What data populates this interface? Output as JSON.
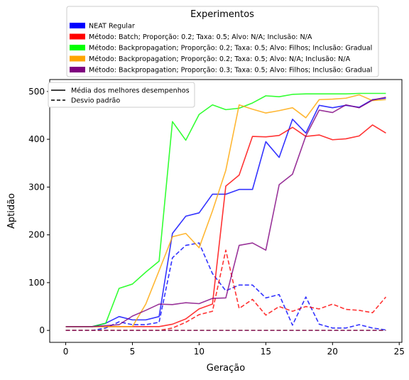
{
  "chart_data": {
    "type": "line",
    "title": "",
    "xlabel": "Geração",
    "ylabel": "Aptidão",
    "xlim": [
      -1.2,
      25.2
    ],
    "ylim": [
      -25,
      525
    ],
    "x_ticks": [
      0,
      5,
      10,
      15,
      20,
      25
    ],
    "y_ticks": [
      0,
      100,
      200,
      300,
      400,
      500
    ],
    "grid": false,
    "legend_experiments": {
      "title": "Experimentos",
      "placement": "above-plot",
      "entries": [
        {
          "label": "NEAT Regular",
          "color": "#0000ff"
        },
        {
          "label": "Método: Batch; Proporção: 0.2; Taxa: 0.5; Alvo: N/A; Inclusão: N/A",
          "color": "#ff0000"
        },
        {
          "label": "Método: Backpropagation; Proporção: 0.2; Taxa: 0.5; Alvo: Filhos; Inclusão: Gradual",
          "color": "#00ff00"
        },
        {
          "label": "Método: Backpropagation; Proporção: 0.2; Taxa: 0.5; Alvo: N/A; Inclusão: N/A",
          "color": "#ffa500"
        },
        {
          "label": "Método: Backpropagation; Proporção: 0.3; Taxa: 0.5; Alvo: Filhos; Inclusão: Gradual",
          "color": "#800080"
        }
      ]
    },
    "legend_styles": {
      "placement": "upper-left",
      "entries": [
        {
          "label": "Média dos melhores desempenhos",
          "dash": "solid"
        },
        {
          "label": "Desvio padrão",
          "dash": "dashed"
        }
      ]
    },
    "x": [
      0,
      1,
      2,
      3,
      4,
      5,
      6,
      7,
      8,
      9,
      10,
      11,
      12,
      13,
      14,
      15,
      16,
      17,
      18,
      19,
      20,
      21,
      22,
      23,
      24
    ],
    "series": [
      {
        "name": "NEAT Regular",
        "kind": "mean",
        "color": "#0000ff",
        "values": [
          8,
          8,
          8,
          15,
          29,
          22,
          22,
          29,
          203,
          239,
          246,
          285,
          285,
          295,
          295,
          395,
          362,
          442,
          413,
          471,
          466,
          471,
          467,
          483,
          486
        ]
      },
      {
        "name": "NEAT Regular",
        "kind": "std",
        "color": "#0000ff",
        "values": [
          0,
          0,
          0,
          5,
          18,
          12,
          12,
          17,
          152,
          178,
          183,
          119,
          83,
          95,
          95,
          68,
          75,
          11,
          70,
          13,
          5,
          5,
          12,
          5,
          1
        ]
      },
      {
        "name": "Método: Batch; Proporção: 0.2; Taxa: 0.5; Alvo: N/A; Inclusão: N/A",
        "kind": "mean",
        "color": "#ff0000",
        "values": [
          8,
          8,
          8,
          8,
          8,
          8,
          8,
          8,
          13,
          24,
          45,
          55,
          302,
          325,
          406,
          405,
          408,
          425,
          406,
          409,
          399,
          401,
          407,
          430,
          413
        ]
      },
      {
        "name": "Método: Batch; Proporção: 0.2; Taxa: 0.5; Alvo: N/A; Inclusão: N/A",
        "kind": "std",
        "color": "#ff0000",
        "values": [
          0,
          0,
          0,
          0,
          0,
          0,
          0,
          0,
          5,
          17,
          33,
          40,
          168,
          46,
          65,
          32,
          50,
          40,
          50,
          45,
          55,
          44,
          42,
          37,
          70
        ]
      },
      {
        "name": "Método: Backpropagation; Proporção: 0.2; Taxa: 0.5; Alvo: Filhos; Inclusão: Gradual",
        "kind": "mean",
        "color": "#00ff00",
        "values": [
          8,
          8,
          8,
          15,
          88,
          97,
          122,
          145,
          437,
          398,
          452,
          472,
          462,
          465,
          476,
          491,
          489,
          494,
          495,
          495,
          495,
          495,
          496,
          496,
          496
        ]
      },
      {
        "name": "Método: Backpropagation; Proporção: 0.2; Taxa: 0.5; Alvo: Filhos; Inclusão: Gradual",
        "kind": "std",
        "color": "#00ff00",
        "values": [
          0,
          0,
          0,
          0,
          0,
          0,
          0,
          0,
          0,
          0,
          0,
          0,
          0,
          0,
          0,
          0,
          0,
          0,
          0,
          0,
          0,
          0,
          0,
          0,
          0
        ]
      },
      {
        "name": "Método: Backpropagation; Proporção: 0.2; Taxa: 0.5; Alvo: N/A; Inclusão: N/A",
        "kind": "mean",
        "color": "#ffa500",
        "values": [
          8,
          8,
          8,
          8,
          8,
          8,
          55,
          125,
          196,
          203,
          173,
          250,
          335,
          472,
          463,
          455,
          460,
          466,
          445,
          483,
          484,
          486,
          493,
          481,
          483
        ]
      },
      {
        "name": "Método: Backpropagation; Proporção: 0.2; Taxa: 0.5; Alvo: N/A; Inclusão: N/A",
        "kind": "std",
        "color": "#ffa500",
        "values": [
          0,
          0,
          0,
          0,
          0,
          0,
          0,
          0,
          0,
          0,
          0,
          0,
          0,
          0,
          0,
          0,
          0,
          0,
          0,
          0,
          0,
          0,
          0,
          0,
          0
        ]
      },
      {
        "name": "Método: Backpropagation; Proporção: 0.3; Taxa: 0.5; Alvo: Filhos; Inclusão: Gradual",
        "kind": "mean",
        "color": "#800080",
        "values": [
          8,
          8,
          8,
          10,
          12,
          30,
          42,
          55,
          54,
          58,
          56,
          67,
          68,
          178,
          183,
          168,
          305,
          327,
          407,
          461,
          456,
          472,
          466,
          482,
          488
        ]
      },
      {
        "name": "Método: Backpropagation; Proporção: 0.3; Taxa: 0.5; Alvo: Filhos; Inclusão: Gradual",
        "kind": "std",
        "color": "#800080",
        "values": [
          0,
          0,
          0,
          0,
          0,
          0,
          0,
          0,
          0,
          0,
          0,
          0,
          0,
          0,
          0,
          0,
          0,
          0,
          0,
          0,
          0,
          0,
          0,
          0,
          0
        ]
      }
    ]
  }
}
